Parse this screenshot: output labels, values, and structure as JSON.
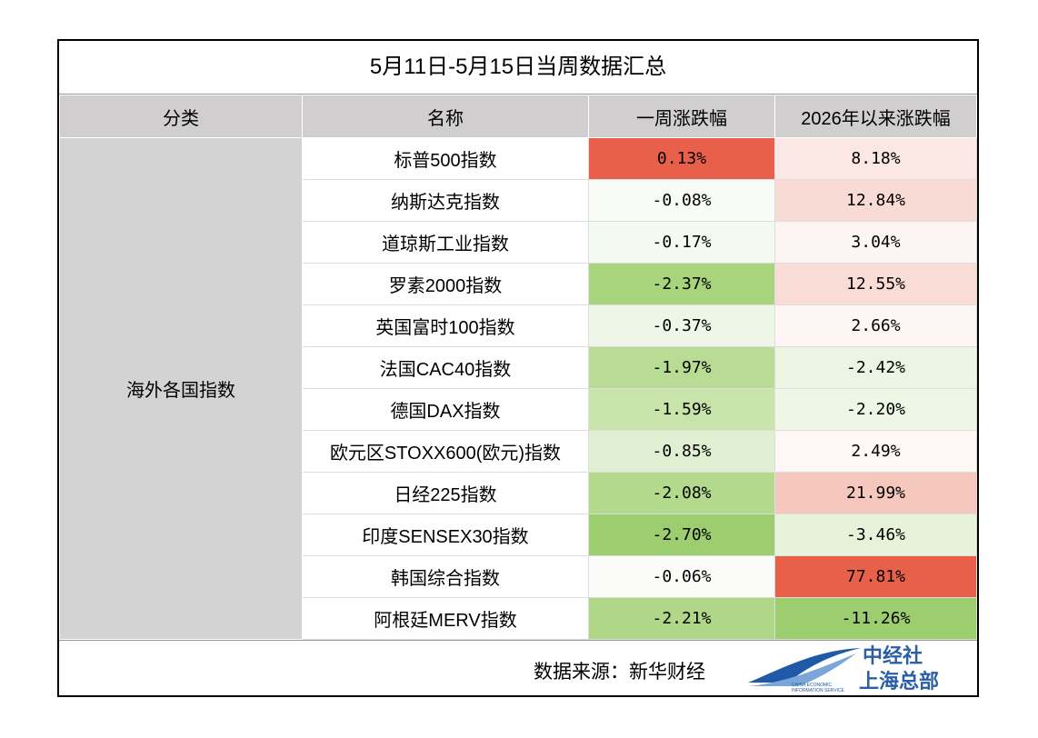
{
  "title": "5月11日-5月15日当周数据汇总",
  "table": {
    "header": [
      "分类",
      "名称",
      "一周涨跌幅",
      "2026年以来涨跌幅"
    ],
    "category": "海外各国指数",
    "rows": [
      {
        "name": "标普500指数",
        "week": "0.13%",
        "week_color": "#e9604a",
        "ytd": "8.18%",
        "ytd_color": "#fbe8e4"
      },
      {
        "name": "纳斯达克指数",
        "week": "-0.08%",
        "week_color": "#f9fcf6",
        "ytd": "12.84%",
        "ytd_color": "#f9dbd5"
      },
      {
        "name": "道琼斯工业指数",
        "week": "-0.17%",
        "week_color": "#f5faf1",
        "ytd": "3.04%",
        "ytd_color": "#fdf5f3"
      },
      {
        "name": "罗素2000指数",
        "week": "-2.37%",
        "week_color": "#a9d47e",
        "ytd": "12.55%",
        "ytd_color": "#f9dcd6"
      },
      {
        "name": "英国富时100指数",
        "week": "-0.37%",
        "week_color": "#eef6e7",
        "ytd": "2.66%",
        "ytd_color": "#fdf6f4"
      },
      {
        "name": "法国CAC40指数",
        "week": "-1.97%",
        "week_color": "#b9dc95",
        "ytd": "-2.42%",
        "ytd_color": "#ecf5e3"
      },
      {
        "name": "德国DAX指数",
        "week": "-1.59%",
        "week_color": "#c8e4aa",
        "ytd": "-2.20%",
        "ytd_color": "#eef6e6"
      },
      {
        "name": "欧元区STOXX600(欧元)指数",
        "week": "-0.85%",
        "week_color": "#e0efd2",
        "ytd": "2.49%",
        "ytd_color": "#fdf7f5"
      },
      {
        "name": "日经225指数",
        "week": "-2.08%",
        "week_color": "#b3d98c",
        "ytd": "21.99%",
        "ytd_color": "#f5c7bd"
      },
      {
        "name": "印度SENSEX30指数",
        "week": "-2.70%",
        "week_color": "#9ccd6e",
        "ytd": "-3.46%",
        "ytd_color": "#e6f2da"
      },
      {
        "name": "韩国综合指数",
        "week": "-0.06%",
        "week_color": "#fbfcf9",
        "ytd": "77.81%",
        "ytd_color": "#e9604a"
      },
      {
        "name": "阿根廷MERV指数",
        "week": "-2.21%",
        "week_color": "#b0d788",
        "ytd": "-11.26%",
        "ytd_color": "#9ccd6e"
      }
    ]
  },
  "footer": {
    "source": "数据来源：新华财经",
    "logo": {
      "name": "中经社",
      "branch": "上海总部",
      "english_1": "CHINA ECONOMIC",
      "english_2": "INFORMATION SERVICE"
    }
  }
}
